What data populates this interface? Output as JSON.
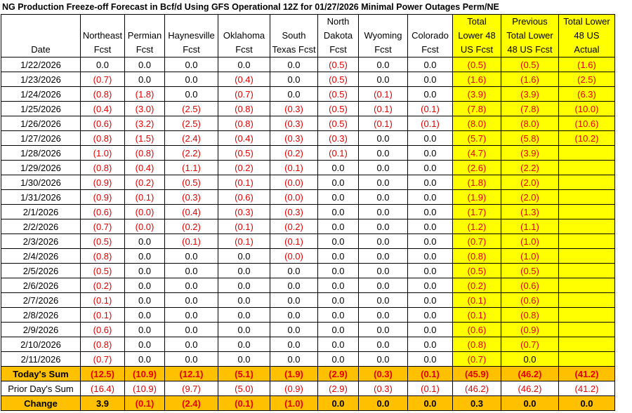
{
  "title": "NG Production Freeze-off Forecast in Bcf/d Using GFS Operational 12Z for 01/27/2026 Minimal Power Outages Perm/NE",
  "headers": [
    [
      "",
      "",
      "Date"
    ],
    [
      "",
      "Northeast",
      "Fcst"
    ],
    [
      "",
      "Permian",
      "Fcst"
    ],
    [
      "",
      "Haynesville",
      "Fcst"
    ],
    [
      "",
      "Oklahoma",
      "Fcst"
    ],
    [
      "",
      "South",
      "Texas Fcst"
    ],
    [
      "North",
      "Dakota",
      "Fcst"
    ],
    [
      "",
      "Wyoming",
      "Fcst"
    ],
    [
      "",
      "Colorado",
      "Fcst"
    ],
    [
      "Total",
      "Lower 48",
      "US Fcst"
    ],
    [
      "Previous",
      "Total Lower",
      "48 US Fcst"
    ],
    [
      "Total Lower",
      "48 US",
      "Actual"
    ]
  ],
  "rows": [
    [
      "1/22/2026",
      "0.0",
      "0.0",
      "0.0",
      "0.0",
      "0.0",
      "(0.5)",
      "0.0",
      "0.0",
      "(0.5)",
      "(0.5)",
      "(1.6)"
    ],
    [
      "1/23/2026",
      "(0.7)",
      "0.0",
      "0.0",
      "(0.4)",
      "0.0",
      "(0.5)",
      "0.0",
      "0.0",
      "(1.6)",
      "(1.6)",
      "(2.5)"
    ],
    [
      "1/24/2026",
      "(0.8)",
      "(1.8)",
      "0.0",
      "(0.7)",
      "0.0",
      "(0.5)",
      "(0.1)",
      "0.0",
      "(3.9)",
      "(3.9)",
      "(6.3)"
    ],
    [
      "1/25/2026",
      "(0.4)",
      "(3.0)",
      "(2.5)",
      "(0.8)",
      "(0.3)",
      "(0.5)",
      "(0.1)",
      "(0.1)",
      "(7.8)",
      "(7.8)",
      "(10.0)"
    ],
    [
      "1/26/2026",
      "(0.6)",
      "(3.2)",
      "(2.5)",
      "(0.8)",
      "(0.3)",
      "(0.5)",
      "(0.1)",
      "(0.1)",
      "(8.0)",
      "(8.0)",
      "(10.6)"
    ],
    [
      "1/27/2026",
      "(0.8)",
      "(1.5)",
      "(2.4)",
      "(0.4)",
      "(0.3)",
      "(0.3)",
      "0.0",
      "0.0",
      "(5.7)",
      "(5.8)",
      "(10.2)"
    ],
    [
      "1/28/2026",
      "(1.0)",
      "(0.8)",
      "(2.2)",
      "(0.5)",
      "(0.2)",
      "(0.1)",
      "0.0",
      "0.0",
      "(4.7)",
      "(3.9)",
      ""
    ],
    [
      "1/29/2026",
      "(0.8)",
      "(0.4)",
      "(1.1)",
      "(0.2)",
      "(0.1)",
      "0.0",
      "0.0",
      "0.0",
      "(2.6)",
      "(2.2)",
      ""
    ],
    [
      "1/30/2026",
      "(0.9)",
      "(0.2)",
      "(0.5)",
      "(0.1)",
      "(0.0)",
      "0.0",
      "0.0",
      "0.0",
      "(1.8)",
      "(2.0)",
      ""
    ],
    [
      "1/31/2026",
      "(0.9)",
      "(0.1)",
      "(0.3)",
      "(0.6)",
      "(0.0)",
      "0.0",
      "0.0",
      "0.0",
      "(1.9)",
      "(2.0)",
      ""
    ],
    [
      "2/1/2026",
      "(0.6)",
      "(0.0)",
      "(0.4)",
      "(0.3)",
      "(0.3)",
      "0.0",
      "0.0",
      "0.0",
      "(1.7)",
      "(1.3)",
      ""
    ],
    [
      "2/2/2026",
      "(0.7)",
      "(0.0)",
      "(0.2)",
      "(0.1)",
      "(0.2)",
      "0.0",
      "0.0",
      "0.0",
      "(1.2)",
      "(1.1)",
      ""
    ],
    [
      "2/3/2026",
      "(0.5)",
      "0.0",
      "(0.1)",
      "(0.1)",
      "(0.1)",
      "0.0",
      "0.0",
      "0.0",
      "(0.7)",
      "(1.0)",
      ""
    ],
    [
      "2/4/2026",
      "(0.8)",
      "0.0",
      "0.0",
      "0.0",
      "(0.0)",
      "0.0",
      "0.0",
      "0.0",
      "(0.8)",
      "(1.0)",
      ""
    ],
    [
      "2/5/2026",
      "(0.5)",
      "0.0",
      "0.0",
      "0.0",
      "0.0",
      "0.0",
      "0.0",
      "0.0",
      "(0.5)",
      "(0.5)",
      ""
    ],
    [
      "2/6/2026",
      "(0.2)",
      "0.0",
      "0.0",
      "0.0",
      "0.0",
      "0.0",
      "0.0",
      "0.0",
      "(0.2)",
      "(0.6)",
      ""
    ],
    [
      "2/7/2026",
      "(0.1)",
      "0.0",
      "0.0",
      "0.0",
      "0.0",
      "0.0",
      "0.0",
      "0.0",
      "(0.1)",
      "(0.6)",
      ""
    ],
    [
      "2/8/2026",
      "(0.1)",
      "0.0",
      "0.0",
      "0.0",
      "0.0",
      "0.0",
      "0.0",
      "0.0",
      "(0.1)",
      "(0.8)",
      ""
    ],
    [
      "2/9/2026",
      "(0.6)",
      "0.0",
      "0.0",
      "0.0",
      "0.0",
      "0.0",
      "0.0",
      "0.0",
      "(0.6)",
      "(0.9)",
      ""
    ],
    [
      "2/10/2026",
      "(0.8)",
      "0.0",
      "0.0",
      "0.0",
      "0.0",
      "0.0",
      "0.0",
      "0.0",
      "(0.8)",
      "(0.7)",
      ""
    ],
    [
      "2/11/2026",
      "(0.7)",
      "0.0",
      "0.0",
      "0.0",
      "0.0",
      "0.0",
      "0.0",
      "0.0",
      "(0.7)",
      "0.0",
      ""
    ]
  ],
  "todays_sum": [
    "Today's Sum",
    "(12.5)",
    "(10.9)",
    "(12.1)",
    "(5.1)",
    "(1.9)",
    "(2.9)",
    "(0.3)",
    "(0.1)",
    "(45.9)",
    "(46.2)",
    "(41.2)"
  ],
  "prior_sum": [
    "Prior Day's Sum",
    "(16.4)",
    "(10.9)",
    "(9.7)",
    "(5.0)",
    "(0.9)",
    "(2.9)",
    "(0.3)",
    "(0.1)",
    "(46.2)",
    "(46.2)",
    "(41.2)"
  ],
  "change": [
    "Change",
    "3.9",
    "(0.1)",
    "(2.4)",
    "(0.1)",
    "(1.0)",
    "0.0",
    "0.0",
    "0.0",
    "0.3",
    "0.0",
    "0.0"
  ],
  "colors": {
    "negative": "#e00000",
    "highlight": "#ffff00",
    "summary": "#ffc000"
  }
}
